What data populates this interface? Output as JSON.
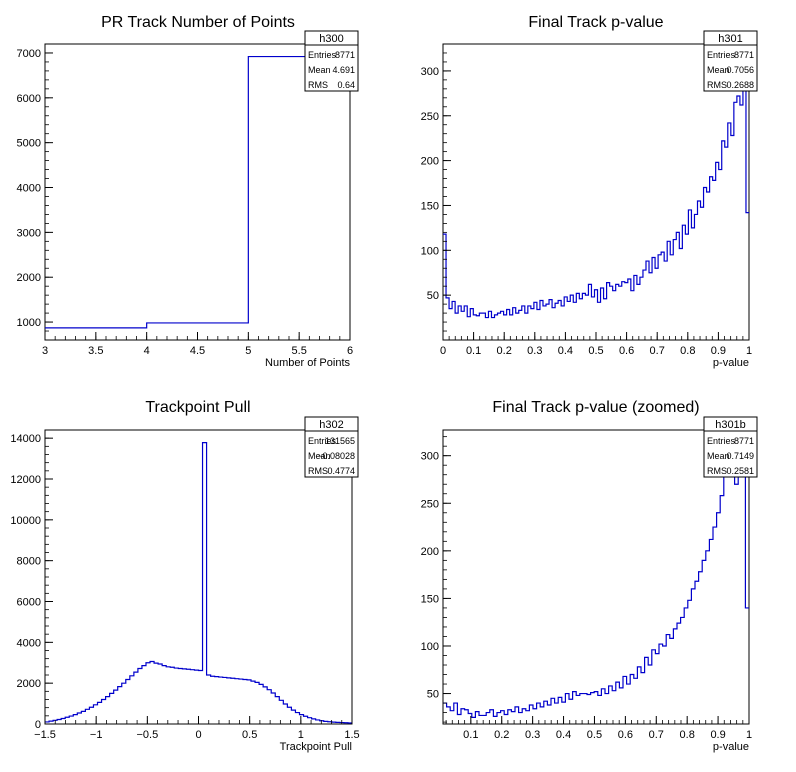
{
  "colors": {
    "hist_line": "#0000cc",
    "axis": "#000000",
    "background": "#ffffff"
  },
  "chart_data": [
    {
      "id": "h300",
      "type": "histogram",
      "title": "PR Track Number of Points",
      "xlabel": "Number of Points",
      "ylabel": "",
      "xlim": [
        3,
        6
      ],
      "ylim": [
        600,
        7200
      ],
      "xticks": [
        "3",
        "3.5",
        "4",
        "4.5",
        "5",
        "5.5",
        "6"
      ],
      "yticks": [
        "1000",
        "2000",
        "3000",
        "4000",
        "5000",
        "6000",
        "7000"
      ],
      "x": [
        3,
        4,
        5
      ],
      "values": [
        870,
        980,
        6920
      ],
      "stats": {
        "name": "h300",
        "rows": [
          [
            "Entries",
            "8771"
          ],
          [
            "Mean",
            "4.691"
          ],
          [
            "RMS",
            "0.64"
          ]
        ]
      }
    },
    {
      "id": "h301",
      "type": "histogram",
      "title": "Final Track p-value",
      "xlabel": "p-value",
      "ylabel": "",
      "xlim": [
        0,
        1
      ],
      "ylim": [
        0,
        330
      ],
      "xticks": [
        "0",
        "0.1",
        "0.2",
        "0.3",
        "0.4",
        "0.5",
        "0.6",
        "0.7",
        "0.8",
        "0.9",
        "1"
      ],
      "yticks": [
        "50",
        "100",
        "150",
        "200",
        "250",
        "300"
      ],
      "values": [
        118,
        47,
        35,
        43,
        30,
        38,
        32,
        38,
        26,
        35,
        28,
        27,
        30,
        30,
        25,
        32,
        25,
        28,
        30,
        32,
        28,
        34,
        28,
        36,
        30,
        33,
        38,
        30,
        38,
        35,
        42,
        34,
        44,
        38,
        40,
        45,
        36,
        41,
        44,
        38,
        48,
        43,
        50,
        42,
        52,
        46,
        52,
        50,
        62,
        48,
        56,
        42,
        58,
        46,
        64,
        60,
        55,
        62,
        60,
        65,
        64,
        68,
        55,
        72,
        62,
        70,
        78,
        88,
        75,
        92,
        80,
        95,
        98,
        88,
        110,
        95,
        112,
        120,
        102,
        128,
        118,
        145,
        125,
        140,
        155,
        148,
        170,
        165,
        182,
        178,
        198,
        190,
        222,
        215,
        242,
        228,
        265,
        272,
        262,
        290,
        142
      ]
    },
    {
      "id": "h302",
      "type": "histogram",
      "title": "Trackpoint Pull",
      "xlabel": "Trackpoint Pull",
      "ylabel": "",
      "xlim": [
        -1.5,
        1.5
      ],
      "ylim": [
        0,
        14400
      ],
      "xticks": [
        "−1.5",
        "−1",
        "−0.5",
        "0",
        "0.5",
        "1",
        "1.5"
      ],
      "yticks": [
        "0",
        "2000",
        "4000",
        "6000",
        "8000",
        "10000",
        "12000",
        "14000"
      ],
      "values": [
        100,
        140,
        180,
        220,
        270,
        330,
        390,
        460,
        540,
        620,
        720,
        820,
        940,
        1060,
        1200,
        1340,
        1500,
        1660,
        1830,
        2000,
        2180,
        2360,
        2540,
        2720,
        2860,
        3000,
        3060,
        2980,
        2940,
        2860,
        2800,
        2780,
        2740,
        2720,
        2700,
        2680,
        2660,
        2640,
        2620,
        13780,
        2400,
        2340,
        2320,
        2300,
        2280,
        2260,
        2240,
        2220,
        2200,
        2180,
        2160,
        2100,
        2040,
        1940,
        1820,
        1680,
        1520,
        1340,
        1160,
        980,
        820,
        680,
        560,
        460,
        380,
        310,
        250,
        200,
        160,
        130,
        110,
        90,
        80,
        70,
        60,
        50
      ],
      "stats": {
        "name": "h302",
        "rows": [
          [
            "Entries",
            "131565"
          ],
          [
            "Mean",
            "−0.08028"
          ],
          [
            "RMS",
            "0.4774"
          ]
        ]
      }
    },
    {
      "id": "h301b",
      "type": "histogram",
      "title": "Final Track p-value (zoomed)",
      "xlabel": "p-value",
      "ylabel": "",
      "xlim": [
        0.01,
        1
      ],
      "ylim": [
        18,
        327
      ],
      "xticks": [
        "0.1",
        "0.2",
        "0.3",
        "0.4",
        "0.5",
        "0.6",
        "0.7",
        "0.8",
        "0.9",
        "1"
      ],
      "yticks": [
        "50",
        "100",
        "150",
        "200",
        "250",
        "300"
      ],
      "values": [
        40,
        36,
        32,
        40,
        28,
        34,
        33,
        29,
        25,
        31,
        27,
        27,
        30,
        33,
        26,
        30,
        32,
        28,
        33,
        31,
        36,
        30,
        34,
        32,
        38,
        34,
        40,
        36,
        42,
        38,
        45,
        40,
        46,
        41,
        50,
        44,
        52,
        48,
        50,
        50,
        49,
        51,
        52,
        48,
        55,
        50,
        58,
        53,
        62,
        56,
        68,
        60,
        70,
        66,
        78,
        72,
        88,
        80,
        96,
        92,
        102,
        100,
        112,
        108,
        118,
        124,
        130,
        140,
        148,
        160,
        168,
        178,
        190,
        200,
        212,
        225,
        240,
        258,
        278,
        300,
        315,
        270,
        280,
        290,
        140
      ],
      "stats": {
        "name": "h301b",
        "rows": [
          [
            "Entries",
            "8771"
          ],
          [
            "Mean",
            "0.7149"
          ],
          [
            "RMS",
            "0.2581"
          ]
        ]
      }
    }
  ],
  "extra_stats": {
    "h301": {
      "name": "h301",
      "rows": [
        [
          "Entries",
          "8771"
        ],
        [
          "Mean",
          "0.7056"
        ],
        [
          "RMS",
          "0.2688"
        ]
      ]
    }
  }
}
